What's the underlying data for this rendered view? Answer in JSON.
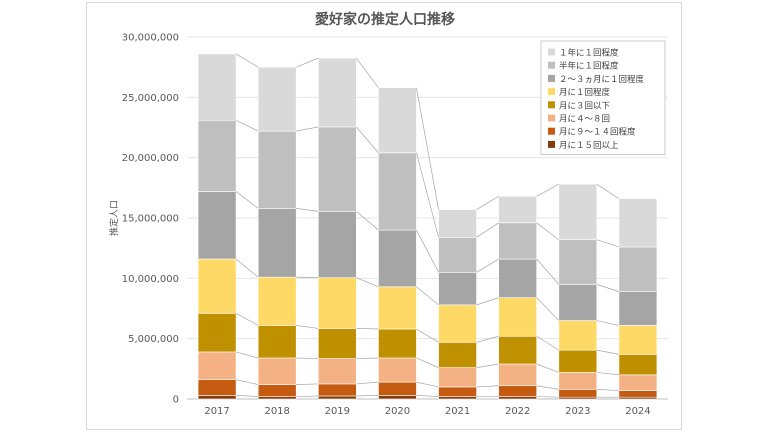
{
  "chart_data": {
    "type": "bar",
    "stacked": true,
    "title": "愛好家の推定人口推移",
    "xlabel": "",
    "ylabel": "推定人口",
    "ylim": [
      0,
      30000000
    ],
    "yticks": [
      "0",
      "5,000,000",
      "10,000,000",
      "15,000,000",
      "20,000,000",
      "25,000,000",
      "30,000,000"
    ],
    "grid": true,
    "legend_position": "top-right",
    "categories": [
      "2017",
      "2018",
      "2019",
      "2020",
      "2021",
      "2022",
      "2023",
      "2024"
    ],
    "series": [
      {
        "name": "月に１５回以上",
        "color": "#843c0c",
        "values": [
          300000,
          200000,
          250000,
          300000,
          200000,
          200000,
          150000,
          150000
        ]
      },
      {
        "name": "月に９～１４回程度",
        "color": "#c55a11",
        "values": [
          1300000,
          1000000,
          1000000,
          1100000,
          800000,
          900000,
          650000,
          550000
        ]
      },
      {
        "name": "月に４～８回",
        "color": "#f4b183",
        "values": [
          2300000,
          2200000,
          2100000,
          2000000,
          1600000,
          1800000,
          1400000,
          1300000
        ]
      },
      {
        "name": "月に３回以下",
        "color": "#bf9000",
        "values": [
          3200000,
          2700000,
          2500000,
          2400000,
          2100000,
          2300000,
          1850000,
          1700000
        ]
      },
      {
        "name": "月に１回程度",
        "color": "#ffd966",
        "values": [
          4500000,
          4000000,
          4200000,
          3500000,
          3100000,
          3200000,
          2450000,
          2400000
        ]
      },
      {
        "name": "２～３ヵ月に１回程度",
        "color": "#a5a5a5",
        "values": [
          5600000,
          5700000,
          5500000,
          4700000,
          2700000,
          3200000,
          3000000,
          2800000
        ]
      },
      {
        "name": "半年に１回程度",
        "color": "#bfbfbf",
        "values": [
          5900000,
          6400000,
          7000000,
          6400000,
          2900000,
          3000000,
          3700000,
          3700000
        ]
      },
      {
        "name": "１年に１回程度",
        "color": "#d9d9d9",
        "values": [
          5500000,
          5300000,
          5700000,
          5400000,
          2300000,
          2200000,
          4600000,
          4000000
        ]
      }
    ]
  }
}
